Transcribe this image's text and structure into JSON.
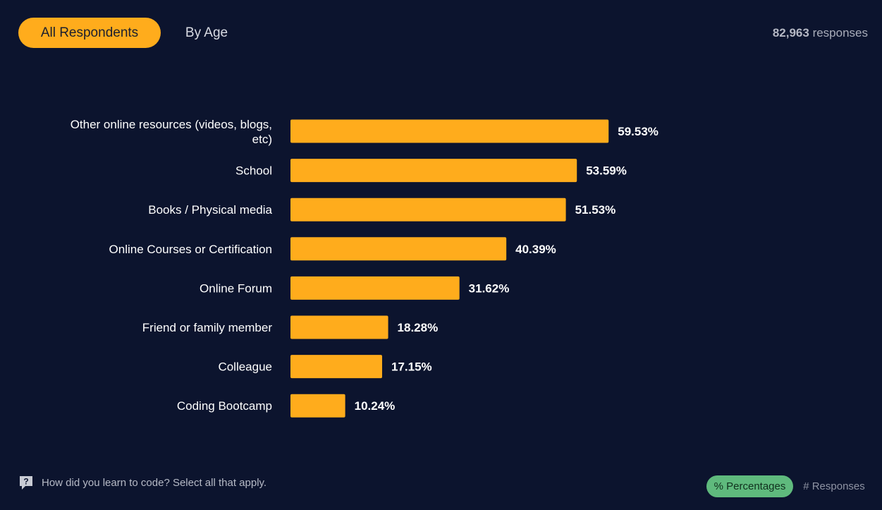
{
  "tabs": [
    {
      "label": "All Respondents",
      "active": true
    },
    {
      "label": "By Age",
      "active": false
    }
  ],
  "responses": {
    "count": "82,963",
    "suffix": "responses"
  },
  "question": {
    "text": "How did you learn to code? Select all that apply.",
    "icon": "help-icon"
  },
  "toggles": [
    {
      "label": "% Percentages",
      "active": true
    },
    {
      "label": "# Responses",
      "active": false
    }
  ],
  "colors": {
    "background": "#0c142e",
    "bar": "#ffac1c",
    "active_tab": "#ffac1c",
    "active_toggle": "#5fba7d"
  },
  "chart_data": {
    "type": "bar",
    "orientation": "horizontal",
    "categories": [
      [
        "Other online resources (videos, blogs,",
        "etc)"
      ],
      [
        "School"
      ],
      [
        "Books / Physical media"
      ],
      [
        "Online Courses or Certification"
      ],
      [
        "Online Forum"
      ],
      [
        "Friend or family member"
      ],
      [
        "Colleague"
      ],
      [
        "Coding Bootcamp"
      ]
    ],
    "values": [
      59.53,
      53.59,
      51.53,
      40.39,
      31.62,
      18.28,
      17.15,
      10.24
    ],
    "value_labels": [
      "59.53%",
      "53.59%",
      "51.53%",
      "40.39%",
      "31.62%",
      "18.28%",
      "17.15%",
      "10.24%"
    ],
    "unit": "%",
    "title": "",
    "xlabel": "",
    "ylabel": "",
    "grid": false,
    "legend": "none"
  }
}
